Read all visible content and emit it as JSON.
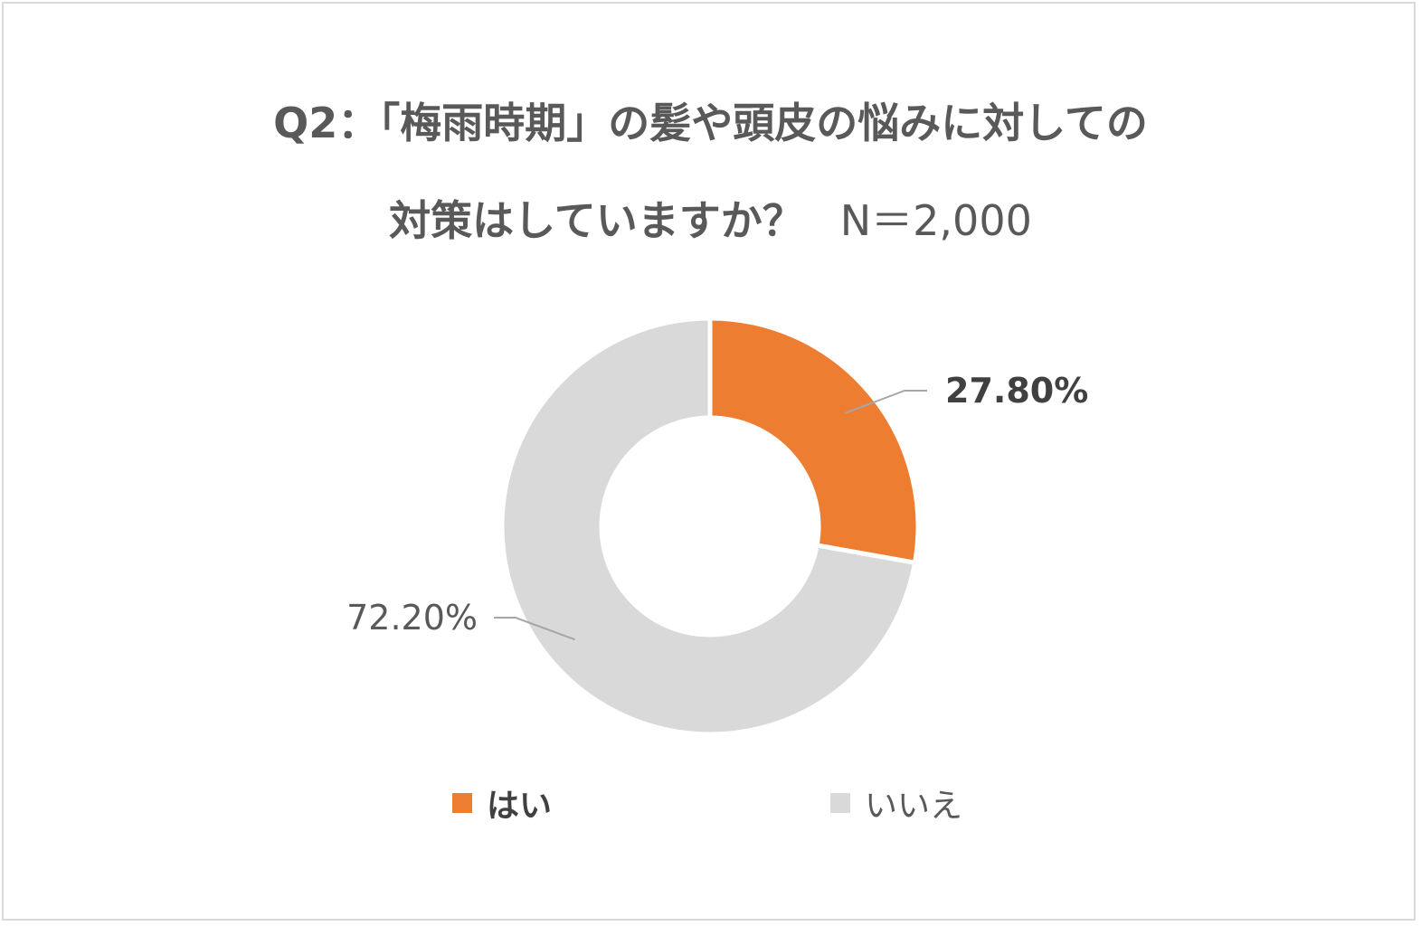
{
  "title": {
    "line1": "Q2：「梅雨時期」の髪や頭皮の悩みに対しての",
    "line2": "対策はしていますか？",
    "n_label": "N＝2,000"
  },
  "chart_data": {
    "type": "pie",
    "variant": "donut",
    "categories": [
      "はい",
      "いいえ"
    ],
    "values": [
      27.8,
      72.2
    ],
    "data_labels": [
      "27.80%",
      "72.20%"
    ],
    "colors": [
      "#ed7d31",
      "#d9d9d9"
    ],
    "legend_position": "bottom"
  }
}
